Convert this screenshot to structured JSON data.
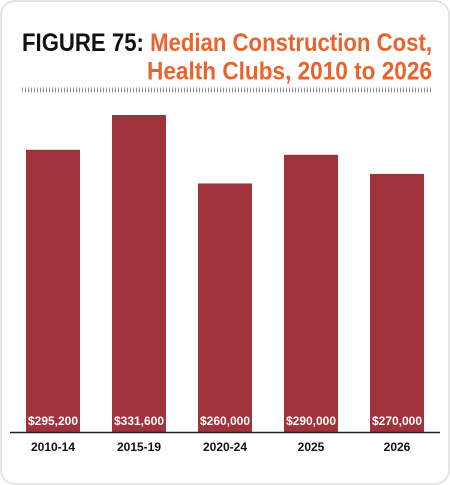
{
  "chart_data": {
    "type": "bar",
    "title_prefix": "FIGURE 75:",
    "title": [
      "Median Construction Cost,",
      "Health Clubs, 2010 to 2026"
    ],
    "categories": [
      "2010-14",
      "2015-19",
      "2020-24",
      "2025",
      "2026"
    ],
    "values": [
      295200,
      331600,
      260000,
      290000,
      270000
    ],
    "value_labels": [
      "$295,200",
      "$331,600",
      "$260,000",
      "$290,000",
      "$270,000"
    ],
    "color": "#a0323c",
    "title_color": "#e8642c"
  }
}
